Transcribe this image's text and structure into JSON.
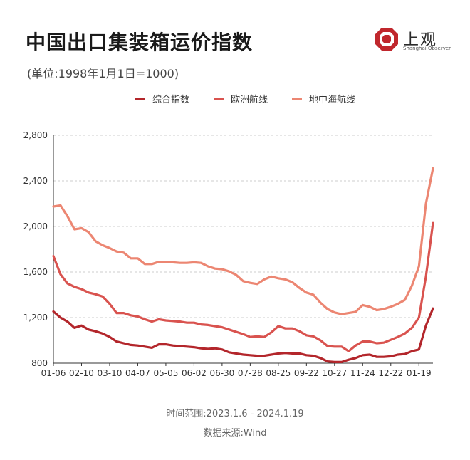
{
  "title": "中国出口集装箱运价指数",
  "subtitle": "(单位:1998年1月1日=1000)",
  "logo": {
    "name": "上观",
    "sub": "Shanghai Observer"
  },
  "source_time": "时间范围:2023.1.6 - 2024.1.19",
  "source_data": "数据来源:Wind",
  "colors": {
    "composite": "#b3262b",
    "europe": "#d9534f",
    "mediterranean": "#ec8672",
    "grid": "#cccccc",
    "axis": "#333333"
  },
  "chart_data": {
    "type": "line",
    "title": "中国出口集装箱运价指数",
    "xlabel": "",
    "ylabel": "",
    "ylim": [
      800,
      2800
    ],
    "yticks": [
      800,
      1200,
      1600,
      2000,
      2400,
      2800
    ],
    "ytick_labels": [
      "800",
      "1,200",
      "1,600",
      "2,000",
      "2,400",
      "2,800"
    ],
    "grid": "horizontal dashed",
    "legend_position": "top",
    "xtick_labels": [
      "01-06",
      "02-10",
      "03-10",
      "04-07",
      "05-05",
      "06-02",
      "06-30",
      "07-28",
      "08-25",
      "09-22",
      "10-27",
      "11-24",
      "12-22",
      "01-19"
    ],
    "x": [
      "01-06",
      "01-13",
      "01-20",
      "01-27",
      "02-03",
      "02-10",
      "02-17",
      "02-24",
      "03-03",
      "03-10",
      "03-17",
      "03-24",
      "03-31",
      "04-07",
      "04-14",
      "04-21",
      "04-28",
      "05-05",
      "05-12",
      "05-19",
      "05-26",
      "06-02",
      "06-09",
      "06-16",
      "06-23",
      "06-30",
      "07-07",
      "07-14",
      "07-21",
      "07-28",
      "08-04",
      "08-11",
      "08-18",
      "08-25",
      "09-01",
      "09-08",
      "09-15",
      "09-22",
      "09-29",
      "10-06",
      "10-13",
      "10-20",
      "10-27",
      "11-03",
      "11-10",
      "11-17",
      "11-24",
      "12-01",
      "12-08",
      "12-15",
      "12-22",
      "12-29",
      "01-05",
      "01-12",
      "01-19"
    ],
    "series": [
      {
        "name": "综合指数",
        "color": "#b3262b",
        "values": [
          1254,
          1200,
          1165,
          1110,
          1130,
          1095,
          1080,
          1060,
          1030,
          990,
          975,
          960,
          955,
          945,
          935,
          965,
          965,
          955,
          950,
          945,
          940,
          930,
          925,
          930,
          920,
          895,
          885,
          875,
          870,
          865,
          865,
          875,
          885,
          890,
          885,
          885,
          870,
          865,
          845,
          815,
          810,
          810,
          830,
          845,
          870,
          875,
          855,
          855,
          860,
          875,
          880,
          905,
          920,
          1130,
          1280
        ]
      },
      {
        "name": "欧洲航线",
        "color": "#d9534f",
        "values": [
          1740,
          1580,
          1500,
          1470,
          1450,
          1420,
          1405,
          1385,
          1320,
          1240,
          1240,
          1220,
          1210,
          1185,
          1165,
          1185,
          1175,
          1170,
          1165,
          1155,
          1155,
          1140,
          1135,
          1125,
          1115,
          1095,
          1075,
          1055,
          1030,
          1035,
          1030,
          1070,
          1125,
          1105,
          1105,
          1080,
          1045,
          1035,
          1000,
          950,
          945,
          945,
          905,
          955,
          990,
          990,
          975,
          980,
          1005,
          1030,
          1060,
          1110,
          1200,
          1560,
          2030
        ]
      },
      {
        "name": "地中海航线",
        "color": "#ec8672",
        "values": [
          2175,
          2185,
          2090,
          1975,
          1985,
          1950,
          1870,
          1835,
          1810,
          1780,
          1770,
          1720,
          1720,
          1670,
          1670,
          1690,
          1690,
          1685,
          1680,
          1680,
          1685,
          1680,
          1650,
          1630,
          1625,
          1605,
          1575,
          1520,
          1505,
          1495,
          1535,
          1560,
          1545,
          1535,
          1510,
          1460,
          1420,
          1400,
          1330,
          1275,
          1245,
          1230,
          1240,
          1250,
          1310,
          1295,
          1265,
          1275,
          1295,
          1320,
          1355,
          1480,
          1650,
          2200,
          2510
        ]
      }
    ]
  }
}
